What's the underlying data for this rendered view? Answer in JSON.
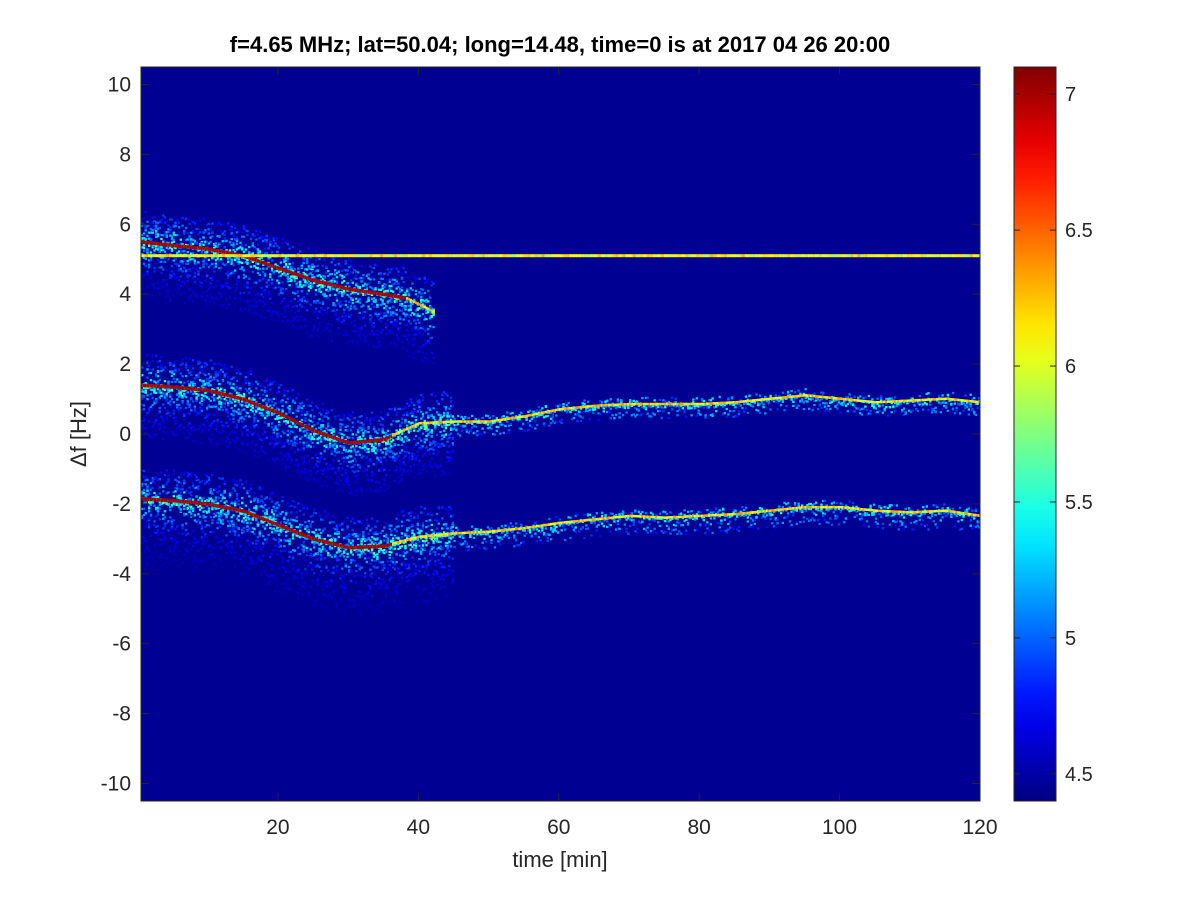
{
  "chart_data": {
    "type": "heatmap",
    "title": "f=4.65 MHz;  lat=50.04; long=14.48, time=0 is at 2017 04 26 20:00",
    "xlabel": "time [min]",
    "ylabel": "Δf [Hz]",
    "xlim": [
      0.5,
      120
    ],
    "ylim": [
      -10.5,
      10.5
    ],
    "xticks": [
      20,
      40,
      60,
      80,
      100,
      120
    ],
    "yticks": [
      -10,
      -8,
      -6,
      -4,
      -2,
      0,
      2,
      4,
      6,
      8,
      10
    ],
    "colorbar": {
      "colormap": "jet",
      "range": [
        4.4,
        7.1
      ],
      "ticks": [
        4.5,
        5,
        5.5,
        6,
        6.5,
        7
      ]
    },
    "background_value": 4.45,
    "reference_line": {
      "delta_f": 5.1,
      "x_range": [
        0.5,
        120
      ],
      "value": 6.0
    },
    "traces": [
      {
        "name": "",
        "points": [
          [
            0.5,
            5.5
          ],
          [
            5,
            5.4
          ],
          [
            10,
            5.3
          ],
          [
            15,
            5.1
          ],
          [
            20,
            4.75
          ],
          [
            25,
            4.4
          ],
          [
            30,
            4.15
          ],
          [
            35,
            4.0
          ],
          [
            38,
            3.9
          ],
          [
            42,
            3.5
          ]
        ],
        "peak_until": 38,
        "scatter_below": 1.6,
        "scatter_above": 0.9
      },
      {
        "name": "",
        "points": [
          [
            0.5,
            1.4
          ],
          [
            5,
            1.35
          ],
          [
            10,
            1.25
          ],
          [
            15,
            1.0
          ],
          [
            20,
            0.6
          ],
          [
            25,
            0.1
          ],
          [
            30,
            -0.25
          ],
          [
            35,
            -0.15
          ],
          [
            40,
            0.3
          ],
          [
            45,
            0.35
          ],
          [
            50,
            0.35
          ],
          [
            55,
            0.5
          ],
          [
            60,
            0.7
          ],
          [
            65,
            0.8
          ],
          [
            70,
            0.85
          ],
          [
            75,
            0.85
          ],
          [
            80,
            0.85
          ],
          [
            85,
            0.9
          ],
          [
            90,
            1.0
          ],
          [
            95,
            1.1
          ],
          [
            100,
            1.0
          ],
          [
            105,
            0.9
          ],
          [
            110,
            0.95
          ],
          [
            115,
            1.0
          ],
          [
            120,
            0.9
          ]
        ],
        "peak_until": 36,
        "scatter_below": 1.5,
        "scatter_above": 0.9
      },
      {
        "name": "",
        "points": [
          [
            0.5,
            -1.85
          ],
          [
            5,
            -1.9
          ],
          [
            10,
            -2.0
          ],
          [
            15,
            -2.2
          ],
          [
            20,
            -2.6
          ],
          [
            25,
            -3.0
          ],
          [
            30,
            -3.25
          ],
          [
            35,
            -3.2
          ],
          [
            40,
            -2.95
          ],
          [
            45,
            -2.85
          ],
          [
            50,
            -2.8
          ],
          [
            55,
            -2.7
          ],
          [
            60,
            -2.55
          ],
          [
            65,
            -2.45
          ],
          [
            70,
            -2.35
          ],
          [
            75,
            -2.4
          ],
          [
            80,
            -2.35
          ],
          [
            85,
            -2.3
          ],
          [
            90,
            -2.2
          ],
          [
            95,
            -2.1
          ],
          [
            100,
            -2.1
          ],
          [
            105,
            -2.2
          ],
          [
            110,
            -2.25
          ],
          [
            115,
            -2.2
          ],
          [
            120,
            -2.35
          ]
        ],
        "peak_until": 36,
        "scatter_below": 1.9,
        "scatter_above": 0.9
      }
    ]
  }
}
